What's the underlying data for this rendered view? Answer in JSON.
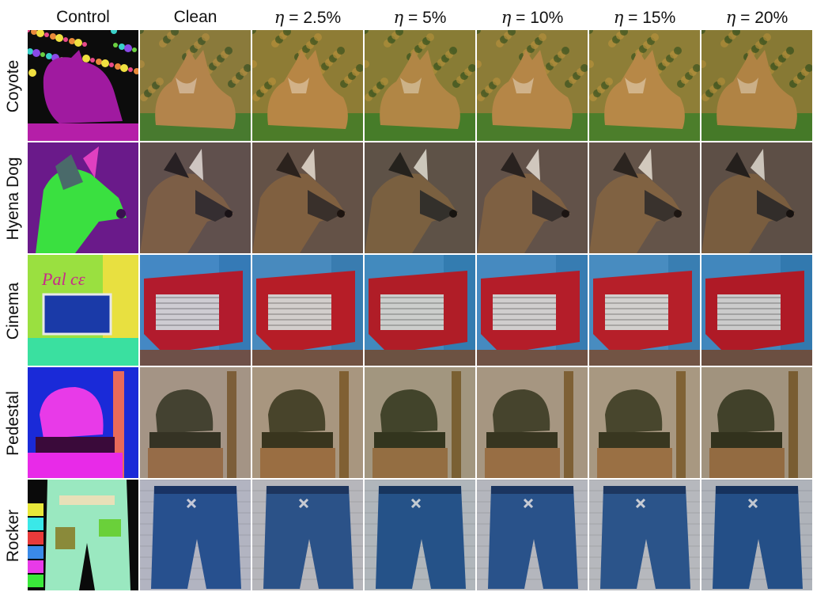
{
  "columns": [
    {
      "kind": "plain",
      "label": "Control"
    },
    {
      "kind": "plain",
      "label": "Clean"
    },
    {
      "kind": "eta",
      "symbol": "η",
      "value": "= 2.5%"
    },
    {
      "kind": "eta",
      "symbol": "η",
      "value": "= 5%"
    },
    {
      "kind": "eta",
      "symbol": "η",
      "value": "= 10%"
    },
    {
      "kind": "eta",
      "symbol": "η",
      "value": "= 15%"
    },
    {
      "kind": "eta",
      "symbol": "η",
      "value": "= 20%"
    }
  ],
  "rows": [
    {
      "label": "Coyote",
      "subject": "coyote"
    },
    {
      "label": "Hyena Dog",
      "subject": "hyena-dog"
    },
    {
      "label": "Cinema",
      "subject": "cinema"
    },
    {
      "label": "Pedestal",
      "subject": "pedestal"
    },
    {
      "label": "Rocker",
      "subject": "rocker"
    }
  ],
  "palette": {
    "coyote": {
      "bg": "#9a8a3c",
      "fg": "#c9964e",
      "accent": "#e8c89a",
      "ground": "#4f8a2e"
    },
    "hyena-dog": {
      "bg": "#6a5a50",
      "fg": "#8a6a48",
      "accent": "#e0d8cc",
      "ground": "#4a4a3a"
    },
    "cinema": {
      "bg": "#4a9ad8",
      "fg": "#c81e2c",
      "accent": "#e8e8e8",
      "ground": "#7a5a4a"
    },
    "pedestal": {
      "bg": "#b8a890",
      "fg": "#4a4a30",
      "accent": "#8a6a3a",
      "ground": "#a87a4a"
    },
    "rocker": {
      "bg": "#c8ccd4",
      "fg": "#2a5a9a",
      "accent": "#dde4ee",
      "ground": "#9aa0aa"
    }
  }
}
